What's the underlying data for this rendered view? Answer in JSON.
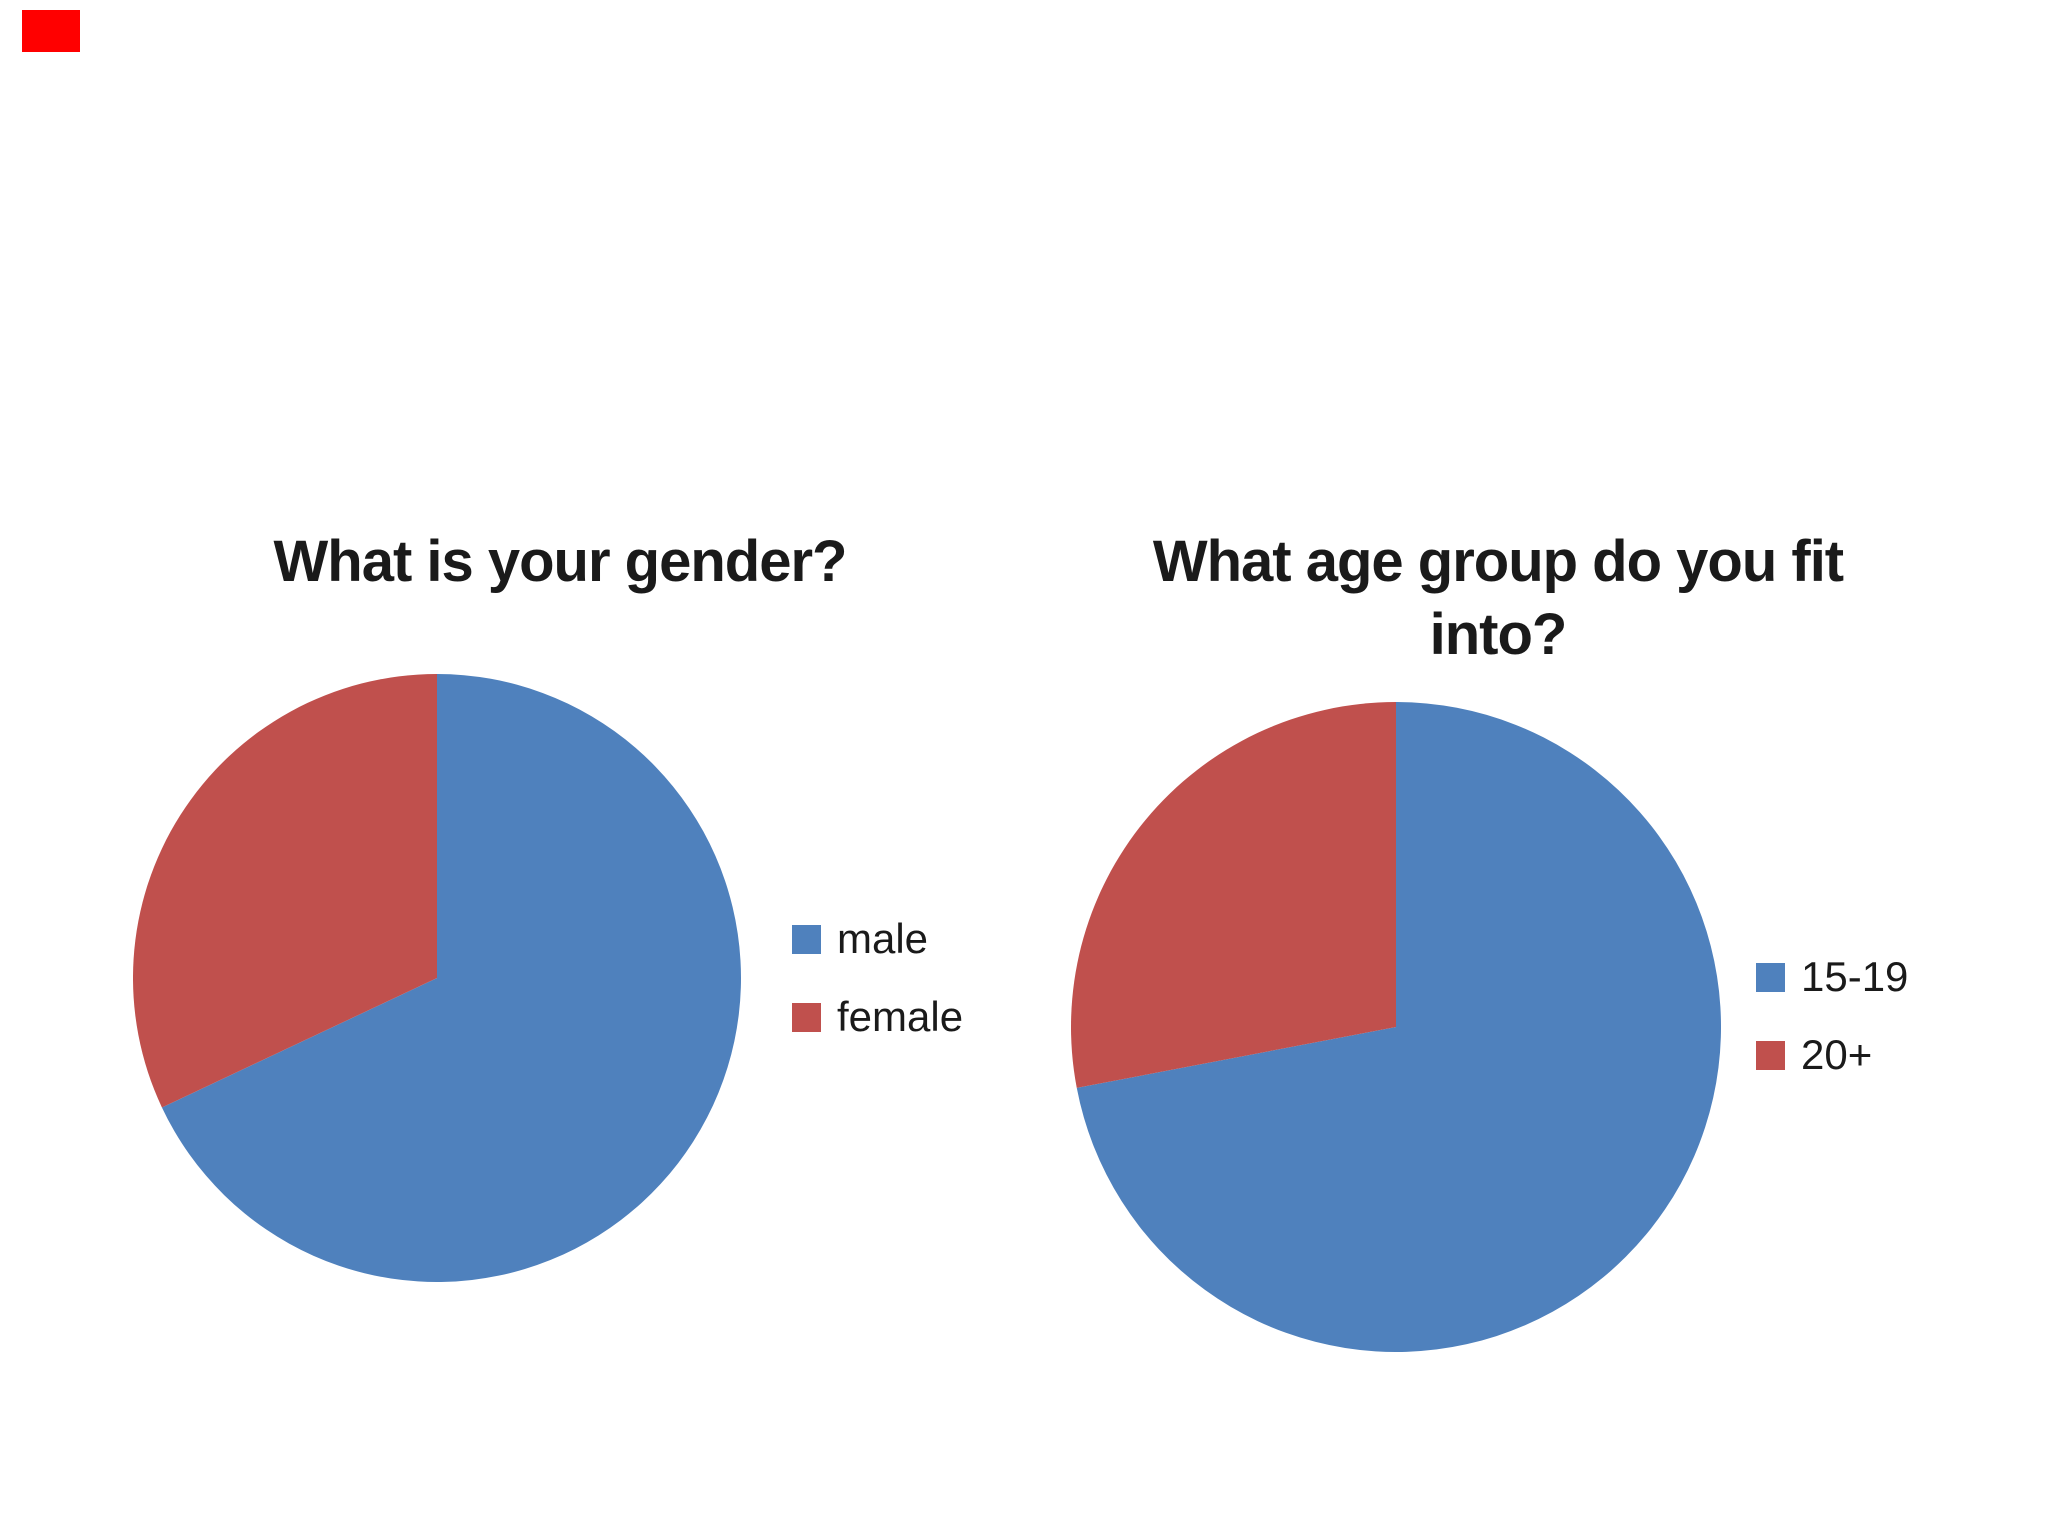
{
  "slide": {
    "background": "#FFFFFF"
  },
  "decorations": {
    "corner_mark_color": "#FF0000"
  },
  "chart_data": [
    {
      "type": "pie",
      "title": "What is your gender?",
      "categories": [
        "male",
        "female"
      ],
      "values": [
        68,
        32
      ],
      "colors": [
        "#4F81BD",
        "#C0504D"
      ],
      "start_angle_deg": 0,
      "direction": "clockwise",
      "legend_position": "right",
      "data_labels": "none"
    },
    {
      "type": "pie",
      "title": "What age group do you fit into?",
      "categories": [
        "15-19",
        "20+"
      ],
      "values": [
        72,
        28
      ],
      "colors": [
        "#4F81BD",
        "#C0504D"
      ],
      "start_angle_deg": 0,
      "direction": "clockwise",
      "legend_position": "right",
      "data_labels": "none"
    }
  ]
}
